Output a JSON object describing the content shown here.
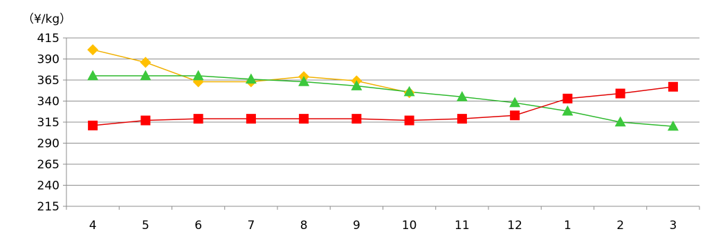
{
  "chart_data": {
    "type": "line",
    "unit_label": "（¥/kg）",
    "categories": [
      "4",
      "5",
      "6",
      "7",
      "8",
      "9",
      "10",
      "11",
      "12",
      "1",
      "2",
      "3"
    ],
    "ylim": [
      215,
      415
    ],
    "yticks": [
      215,
      240,
      265,
      290,
      315,
      340,
      365,
      390,
      415
    ],
    "grid": true,
    "legend": "none",
    "series": [
      {
        "color": "#FFC000",
        "line_color": "#F0B000",
        "marker": "diamond",
        "values": [
          401,
          386,
          363,
          363,
          369,
          364,
          350,
          null,
          null,
          null,
          null,
          null
        ]
      },
      {
        "color": "#3CC83C",
        "line_color": "#2CB82C",
        "marker": "triangle",
        "values": [
          370,
          370,
          370,
          366,
          363,
          358,
          351,
          345,
          338,
          328,
          315,
          310
        ]
      },
      {
        "color": "#FF0000",
        "line_color": "#E00000",
        "marker": "square",
        "values": [
          311,
          317,
          319,
          319,
          319,
          319,
          317,
          319,
          323,
          343,
          349,
          357
        ]
      }
    ]
  }
}
